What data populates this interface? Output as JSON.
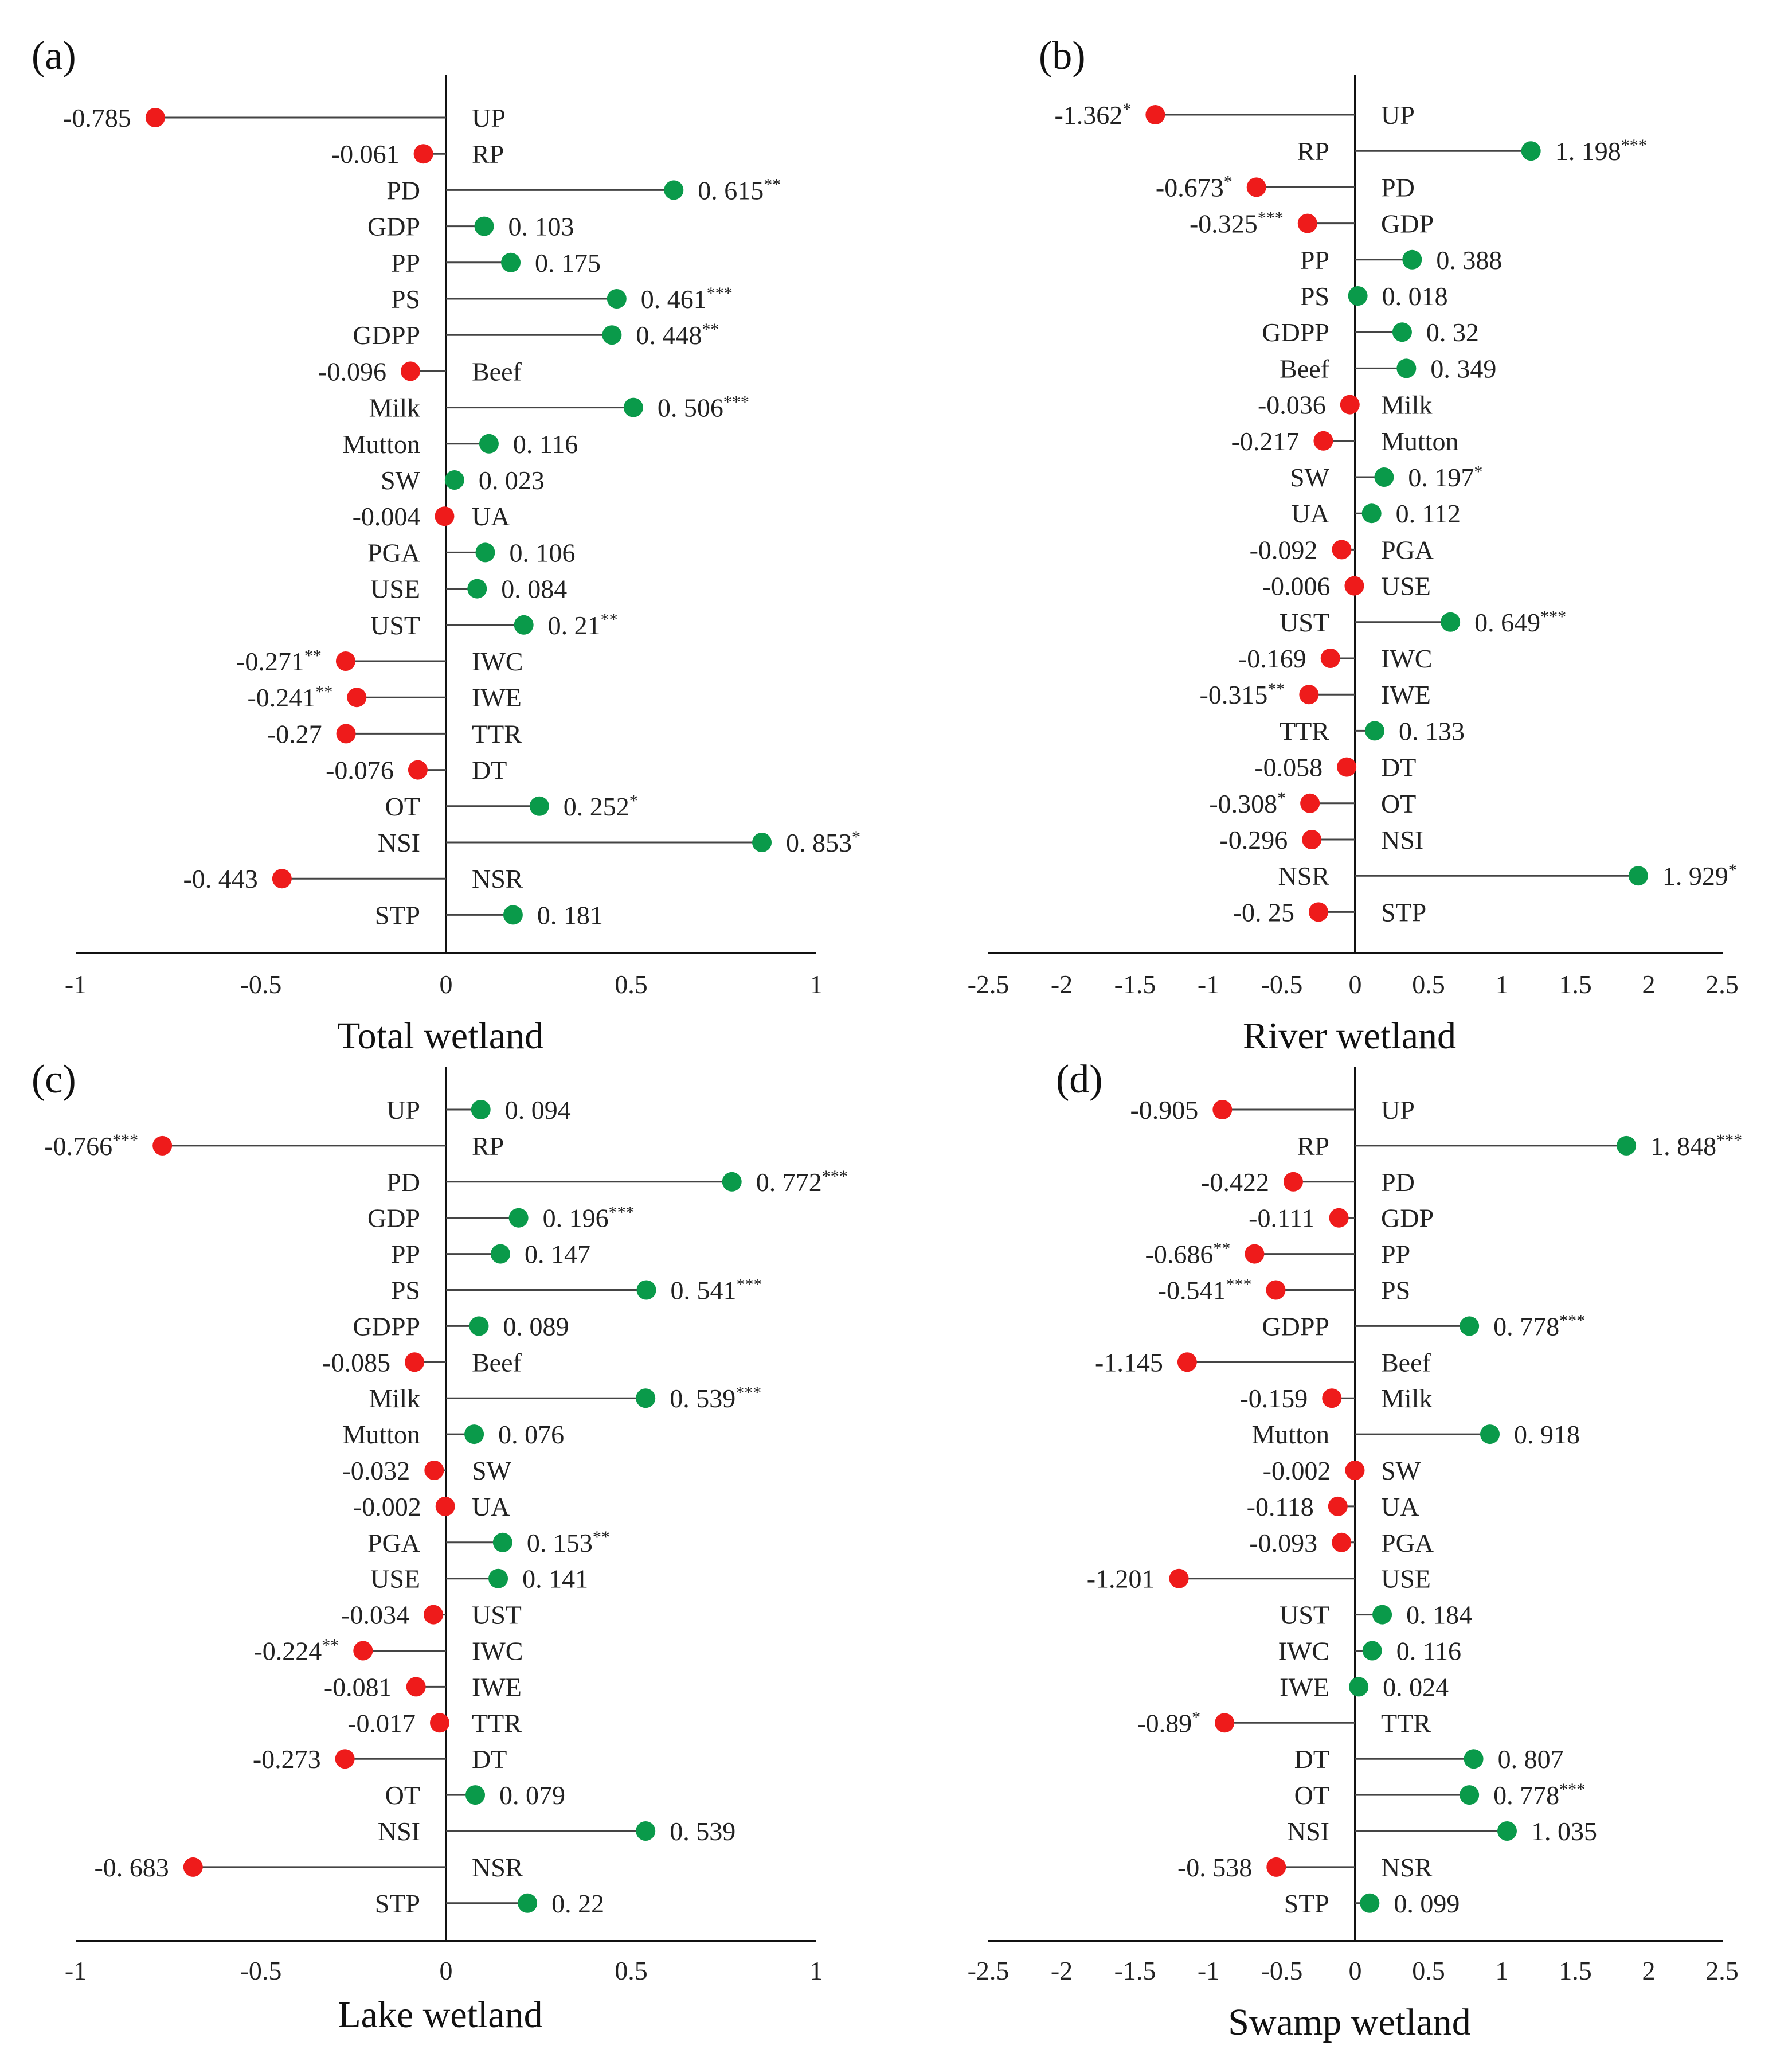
{
  "colors": {
    "positive": "#0a9a4a",
    "negative": "#ee1b1b",
    "axis": "#111111",
    "line": "#444444"
  },
  "chart_data": [
    {
      "type": "lollipop",
      "panel_label": "(a)",
      "title": "Total wetland",
      "xlim": [
        -1,
        1
      ],
      "x_ticks": [
        "-1",
        "-0.5",
        "0",
        "0.5",
        "1"
      ],
      "x_tick_values": [
        -1,
        -0.5,
        0,
        0.5,
        1
      ],
      "categories": [
        "UP",
        "RP",
        "PD",
        "GDP",
        "PP",
        "PS",
        "GDPP",
        "Beef",
        "Milk",
        "Mutton",
        "SW",
        "UA",
        "PGA",
        "USE",
        "UST",
        "IWC",
        "IWE",
        "TTR",
        "DT",
        "OT",
        "NSI",
        "NSR",
        "STP"
      ],
      "values": [
        -0.785,
        -0.061,
        0.615,
        0.103,
        0.175,
        0.461,
        0.448,
        -0.096,
        0.506,
        0.116,
        0.023,
        -0.004,
        0.106,
        0.084,
        0.21,
        -0.271,
        -0.241,
        -0.27,
        -0.076,
        0.252,
        0.853,
        -0.443,
        0.181
      ],
      "value_labels": [
        "-0.785",
        "-0.061",
        "0. 615",
        "0. 103",
        "0. 175",
        "0. 461",
        "0. 448",
        "-0.096",
        "0. 506",
        "0. 116",
        "0. 023",
        "-0.004",
        "0. 106",
        "0. 084",
        "0. 21",
        "-0.271",
        "-0.241",
        "-0.27",
        "-0.076",
        "0. 252",
        "0. 853",
        "-0. 443",
        "0. 181"
      ],
      "significance": [
        "",
        "",
        "**",
        "",
        "",
        "***",
        "**",
        "",
        "***",
        "",
        "",
        "",
        "",
        "",
        "**",
        "**",
        "**",
        "",
        "",
        "*",
        "*",
        "",
        ""
      ]
    },
    {
      "type": "lollipop",
      "panel_label": "(b)",
      "title": "River wetland",
      "xlim": [
        -2.5,
        2.5
      ],
      "x_ticks": [
        "-2.5",
        "-2",
        "-1.5",
        "-1",
        "-0.5",
        "0",
        "0.5",
        "1",
        "1.5",
        "2",
        "2.5"
      ],
      "x_tick_values": [
        -2.5,
        -2,
        -1.5,
        -1,
        -0.5,
        0,
        0.5,
        1,
        1.5,
        2,
        2.5
      ],
      "categories": [
        "UP",
        "RP",
        "PD",
        "GDP",
        "PP",
        "PS",
        "GDPP",
        "Beef",
        "Milk",
        "Mutton",
        "SW",
        "UA",
        "PGA",
        "USE",
        "UST",
        "IWC",
        "IWE",
        "TTR",
        "DT",
        "OT",
        "NSI",
        "NSR",
        "STP"
      ],
      "values": [
        -1.362,
        1.198,
        -0.673,
        -0.325,
        0.388,
        0.018,
        0.32,
        0.349,
        -0.036,
        -0.217,
        0.197,
        0.112,
        -0.092,
        -0.006,
        0.649,
        -0.169,
        -0.315,
        0.133,
        -0.058,
        -0.308,
        -0.296,
        1.929,
        -0.25
      ],
      "value_labels": [
        "-1.362",
        "1. 198",
        "-0.673",
        "-0.325",
        "0. 388",
        "0. 018",
        "0. 32",
        "0. 349",
        "-0.036",
        "-0.217",
        "0. 197",
        "0. 112",
        "-0.092",
        "-0.006",
        "0. 649",
        "-0.169",
        "-0.315",
        "0. 133",
        "-0.058",
        "-0.308",
        "-0.296",
        "1. 929",
        "-0. 25"
      ],
      "significance": [
        "*",
        "***",
        "*",
        "***",
        "",
        "",
        "",
        "",
        "",
        "",
        "*",
        "",
        "",
        "",
        "***",
        "",
        "**",
        "",
        "",
        "*",
        "",
        "*",
        ""
      ]
    },
    {
      "type": "lollipop",
      "panel_label": "(c)",
      "title": "Lake wetland",
      "xlim": [
        -1,
        1
      ],
      "x_ticks": [
        "-1",
        "-0.5",
        "0",
        "0.5",
        "1"
      ],
      "x_tick_values": [
        -1,
        -0.5,
        0,
        0.5,
        1
      ],
      "categories": [
        "UP",
        "RP",
        "PD",
        "GDP",
        "PP",
        "PS",
        "GDPP",
        "Beef",
        "Milk",
        "Mutton",
        "SW",
        "UA",
        "PGA",
        "USE",
        "UST",
        "IWC",
        "IWE",
        "TTR",
        "DT",
        "OT",
        "NSI",
        "NSR",
        "STP"
      ],
      "values": [
        0.094,
        -0.766,
        0.772,
        0.196,
        0.147,
        0.541,
        0.089,
        -0.085,
        0.539,
        0.076,
        -0.032,
        -0.002,
        0.153,
        0.141,
        -0.034,
        -0.224,
        -0.081,
        -0.017,
        -0.273,
        0.079,
        0.539,
        -0.683,
        0.22
      ],
      "value_labels": [
        "0. 094",
        "-0.766",
        "0. 772",
        "0. 196",
        "0. 147",
        "0. 541",
        "0. 089",
        "-0.085",
        "0. 539",
        "0. 076",
        "-0.032",
        "-0.002",
        "0. 153",
        "0. 141",
        "-0.034",
        "-0.224",
        "-0.081",
        "-0.017",
        "-0.273",
        "0. 079",
        "0. 539",
        "-0. 683",
        "0. 22"
      ],
      "significance": [
        "",
        "***",
        "***",
        "***",
        "",
        "***",
        "",
        "",
        "***",
        "",
        "",
        "",
        "**",
        "",
        "",
        "**",
        "",
        "",
        "",
        "",
        "",
        "",
        ""
      ]
    },
    {
      "type": "lollipop",
      "panel_label": "(d)",
      "title": "Swamp wetland",
      "xlim": [
        -2.5,
        2.5
      ],
      "x_ticks": [
        "-2.5",
        "-2",
        "-1.5",
        "-1",
        "-0.5",
        "0",
        "0.5",
        "1",
        "1.5",
        "2",
        "2.5"
      ],
      "x_tick_values": [
        -2.5,
        -2,
        -1.5,
        -1,
        -0.5,
        0,
        0.5,
        1,
        1.5,
        2,
        2.5
      ],
      "categories": [
        "UP",
        "RP",
        "PD",
        "GDP",
        "PP",
        "PS",
        "GDPP",
        "Beef",
        "Milk",
        "Mutton",
        "SW",
        "UA",
        "PGA",
        "USE",
        "UST",
        "IWC",
        "IWE",
        "TTR",
        "DT",
        "OT",
        "NSI",
        "NSR",
        "STP"
      ],
      "values": [
        -0.905,
        1.848,
        -0.422,
        -0.111,
        -0.686,
        -0.541,
        0.778,
        -1.145,
        -0.159,
        0.918,
        -0.002,
        -0.118,
        -0.093,
        -1.201,
        0.184,
        0.116,
        0.024,
        -0.89,
        0.807,
        0.778,
        1.035,
        -0.538,
        0.099
      ],
      "value_labels": [
        "-0.905",
        "1. 848",
        "-0.422",
        "-0.111",
        "-0.686",
        "-0.541",
        "0. 778",
        "-1.145",
        "-0.159",
        "0. 918",
        "-0.002",
        "-0.118",
        "-0.093",
        "-1.201",
        "0. 184",
        "0. 116",
        "0. 024",
        "-0.89",
        "0. 807",
        "0. 778",
        "1. 035",
        "-0. 538",
        "0. 099"
      ],
      "significance": [
        "",
        "***",
        "",
        "",
        "**",
        "***",
        "***",
        "",
        "",
        "",
        "",
        "",
        "",
        "",
        "",
        "",
        "",
        "*",
        "",
        "***",
        "",
        "",
        ""
      ]
    }
  ]
}
